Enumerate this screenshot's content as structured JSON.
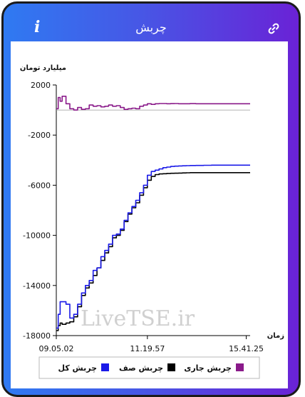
{
  "header": {
    "title": "چربش",
    "info_icon": "info-icon",
    "link_icon": "link-icon"
  },
  "colors": {
    "frame_left": "#2f7af2",
    "frame_right": "#6a22d6",
    "total": "#1a1ae8",
    "queue": "#000000",
    "current": "#8a1a8a",
    "watermark": "#cfcfcf"
  },
  "watermark": "LiveTSE.ir",
  "chart_data": {
    "type": "line",
    "ylabel": "میلیارد تومان",
    "xlabel": "زمان",
    "ylim": [
      -18000,
      2000
    ],
    "yticks": [
      2000,
      -2000,
      -6000,
      -10000,
      -14000,
      -18000
    ],
    "ytick_labels": [
      "2000",
      "-2000",
      "-6000",
      "-10000",
      "-14000",
      "-18000"
    ],
    "xtick_labels": [
      "09.05.02",
      "11.19.57",
      "15.41.25"
    ],
    "x": [
      0,
      0.01,
      0.02,
      0.03,
      0.05,
      0.07,
      0.09,
      0.11,
      0.13,
      0.15,
      0.17,
      0.19,
      0.21,
      0.23,
      0.25,
      0.27,
      0.29,
      0.31,
      0.33,
      0.35,
      0.37,
      0.39,
      0.41,
      0.43,
      0.45,
      0.47,
      0.49,
      0.51,
      0.53,
      0.55,
      0.57,
      0.59,
      0.61,
      0.63,
      0.65,
      0.67,
      0.69,
      0.72,
      0.76,
      0.8,
      0.85,
      0.9,
      0.95,
      1.0
    ],
    "series": [
      {
        "name": "چربش کل",
        "values": [
          -17400,
          -16300,
          -15300,
          -15300,
          -15500,
          -16600,
          -16300,
          -15500,
          -14600,
          -14000,
          -13600,
          -12800,
          -12600,
          -11700,
          -11200,
          -10700,
          -10000,
          -9900,
          -9500,
          -8800,
          -8200,
          -7700,
          -7200,
          -6600,
          -6000,
          -5200,
          -4900,
          -4800,
          -4700,
          -4600,
          -4550,
          -4500,
          -4480,
          -4460,
          -4450,
          -4440,
          -4430,
          -4420,
          -4410,
          -4400,
          -4400,
          -4400,
          -4400,
          -4400
        ]
      },
      {
        "name": "چربش صف",
        "values": [
          -17600,
          -17200,
          -17000,
          -17100,
          -17000,
          -16900,
          -16500,
          -15700,
          -14800,
          -14200,
          -13800,
          -13200,
          -12600,
          -12000,
          -11400,
          -10900,
          -10200,
          -10000,
          -9600,
          -8900,
          -8300,
          -7800,
          -7400,
          -6800,
          -6200,
          -5600,
          -5300,
          -5150,
          -5100,
          -5080,
          -5060,
          -5050,
          -5040,
          -5030,
          -5020,
          -5010,
          -5000,
          -5000,
          -5000,
          -5000,
          -5000,
          -5000,
          -5000,
          -5000
        ]
      },
      {
        "name": "چربش جاری",
        "values": [
          100,
          1000,
          700,
          1100,
          500,
          100,
          0,
          200,
          50,
          100,
          400,
          300,
          350,
          250,
          300,
          400,
          300,
          350,
          200,
          50,
          100,
          150,
          100,
          300,
          400,
          500,
          450,
          500,
          520,
          520,
          500,
          510,
          520,
          500,
          500,
          500,
          510,
          500,
          500,
          500,
          500,
          500,
          500,
          500
        ]
      }
    ],
    "legend_position": "bottom"
  }
}
